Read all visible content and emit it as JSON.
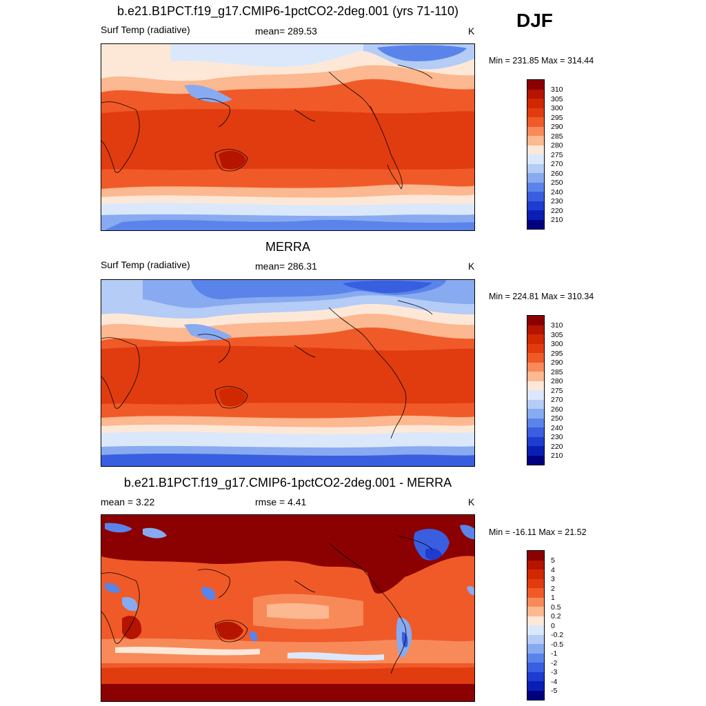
{
  "season": "DJF",
  "panels": [
    {
      "title": "b.e21.B1PCT.f19_g17.CMIP6-1pctCO2-2deg.001 (yrs 71-110)",
      "left_label": "Surf Temp (radiative)",
      "center_label": "mean= 289.53",
      "units": "K",
      "minmax": "Min = 231.85 Max = 314.44"
    },
    {
      "title": "MERRA",
      "left_label": "Surf Temp (radiative)",
      "center_label": "mean= 286.31",
      "units": "K",
      "minmax": "Min = 224.81 Max = 310.34"
    },
    {
      "title": "b.e21.B1PCT.f19_g17.CMIP6-1pctCO2-2deg.001 - MERRA",
      "left_label": "mean =   3.22",
      "center_label": "rmse =   4.41",
      "units": "K",
      "minmax": "Min = -16.11 Max =  21.52"
    }
  ],
  "colorbars": {
    "absolute": {
      "labels": [
        "310",
        "305",
        "300",
        "295",
        "290",
        "285",
        "280",
        "275",
        "270",
        "260",
        "250",
        "240",
        "230",
        "220",
        "210"
      ],
      "colors": [
        "#8b0000",
        "#b41400",
        "#d02800",
        "#e03c10",
        "#f05a28",
        "#f88a5a",
        "#fcb890",
        "#fde8d8",
        "#dbe8fb",
        "#b4ccf6",
        "#88aaf0",
        "#5a84ea",
        "#3a5ee0",
        "#1e3cd0",
        "#0a1eb4",
        "#000080"
      ]
    },
    "difference": {
      "labels": [
        "5",
        "4",
        "3",
        "2",
        "1",
        "0.5",
        "0.2",
        "0",
        "-0.2",
        "-0.5",
        "-1",
        "-2",
        "-3",
        "-4",
        "-5"
      ],
      "colors": [
        "#8b0000",
        "#b41400",
        "#d02800",
        "#e03c10",
        "#f05a28",
        "#f88a5a",
        "#fcb890",
        "#fde8d8",
        "#dbe8fb",
        "#b4ccf6",
        "#88aaf0",
        "#5a84ea",
        "#3a5ee0",
        "#1e3cd0",
        "#0a1eb4",
        "#000080"
      ]
    }
  }
}
